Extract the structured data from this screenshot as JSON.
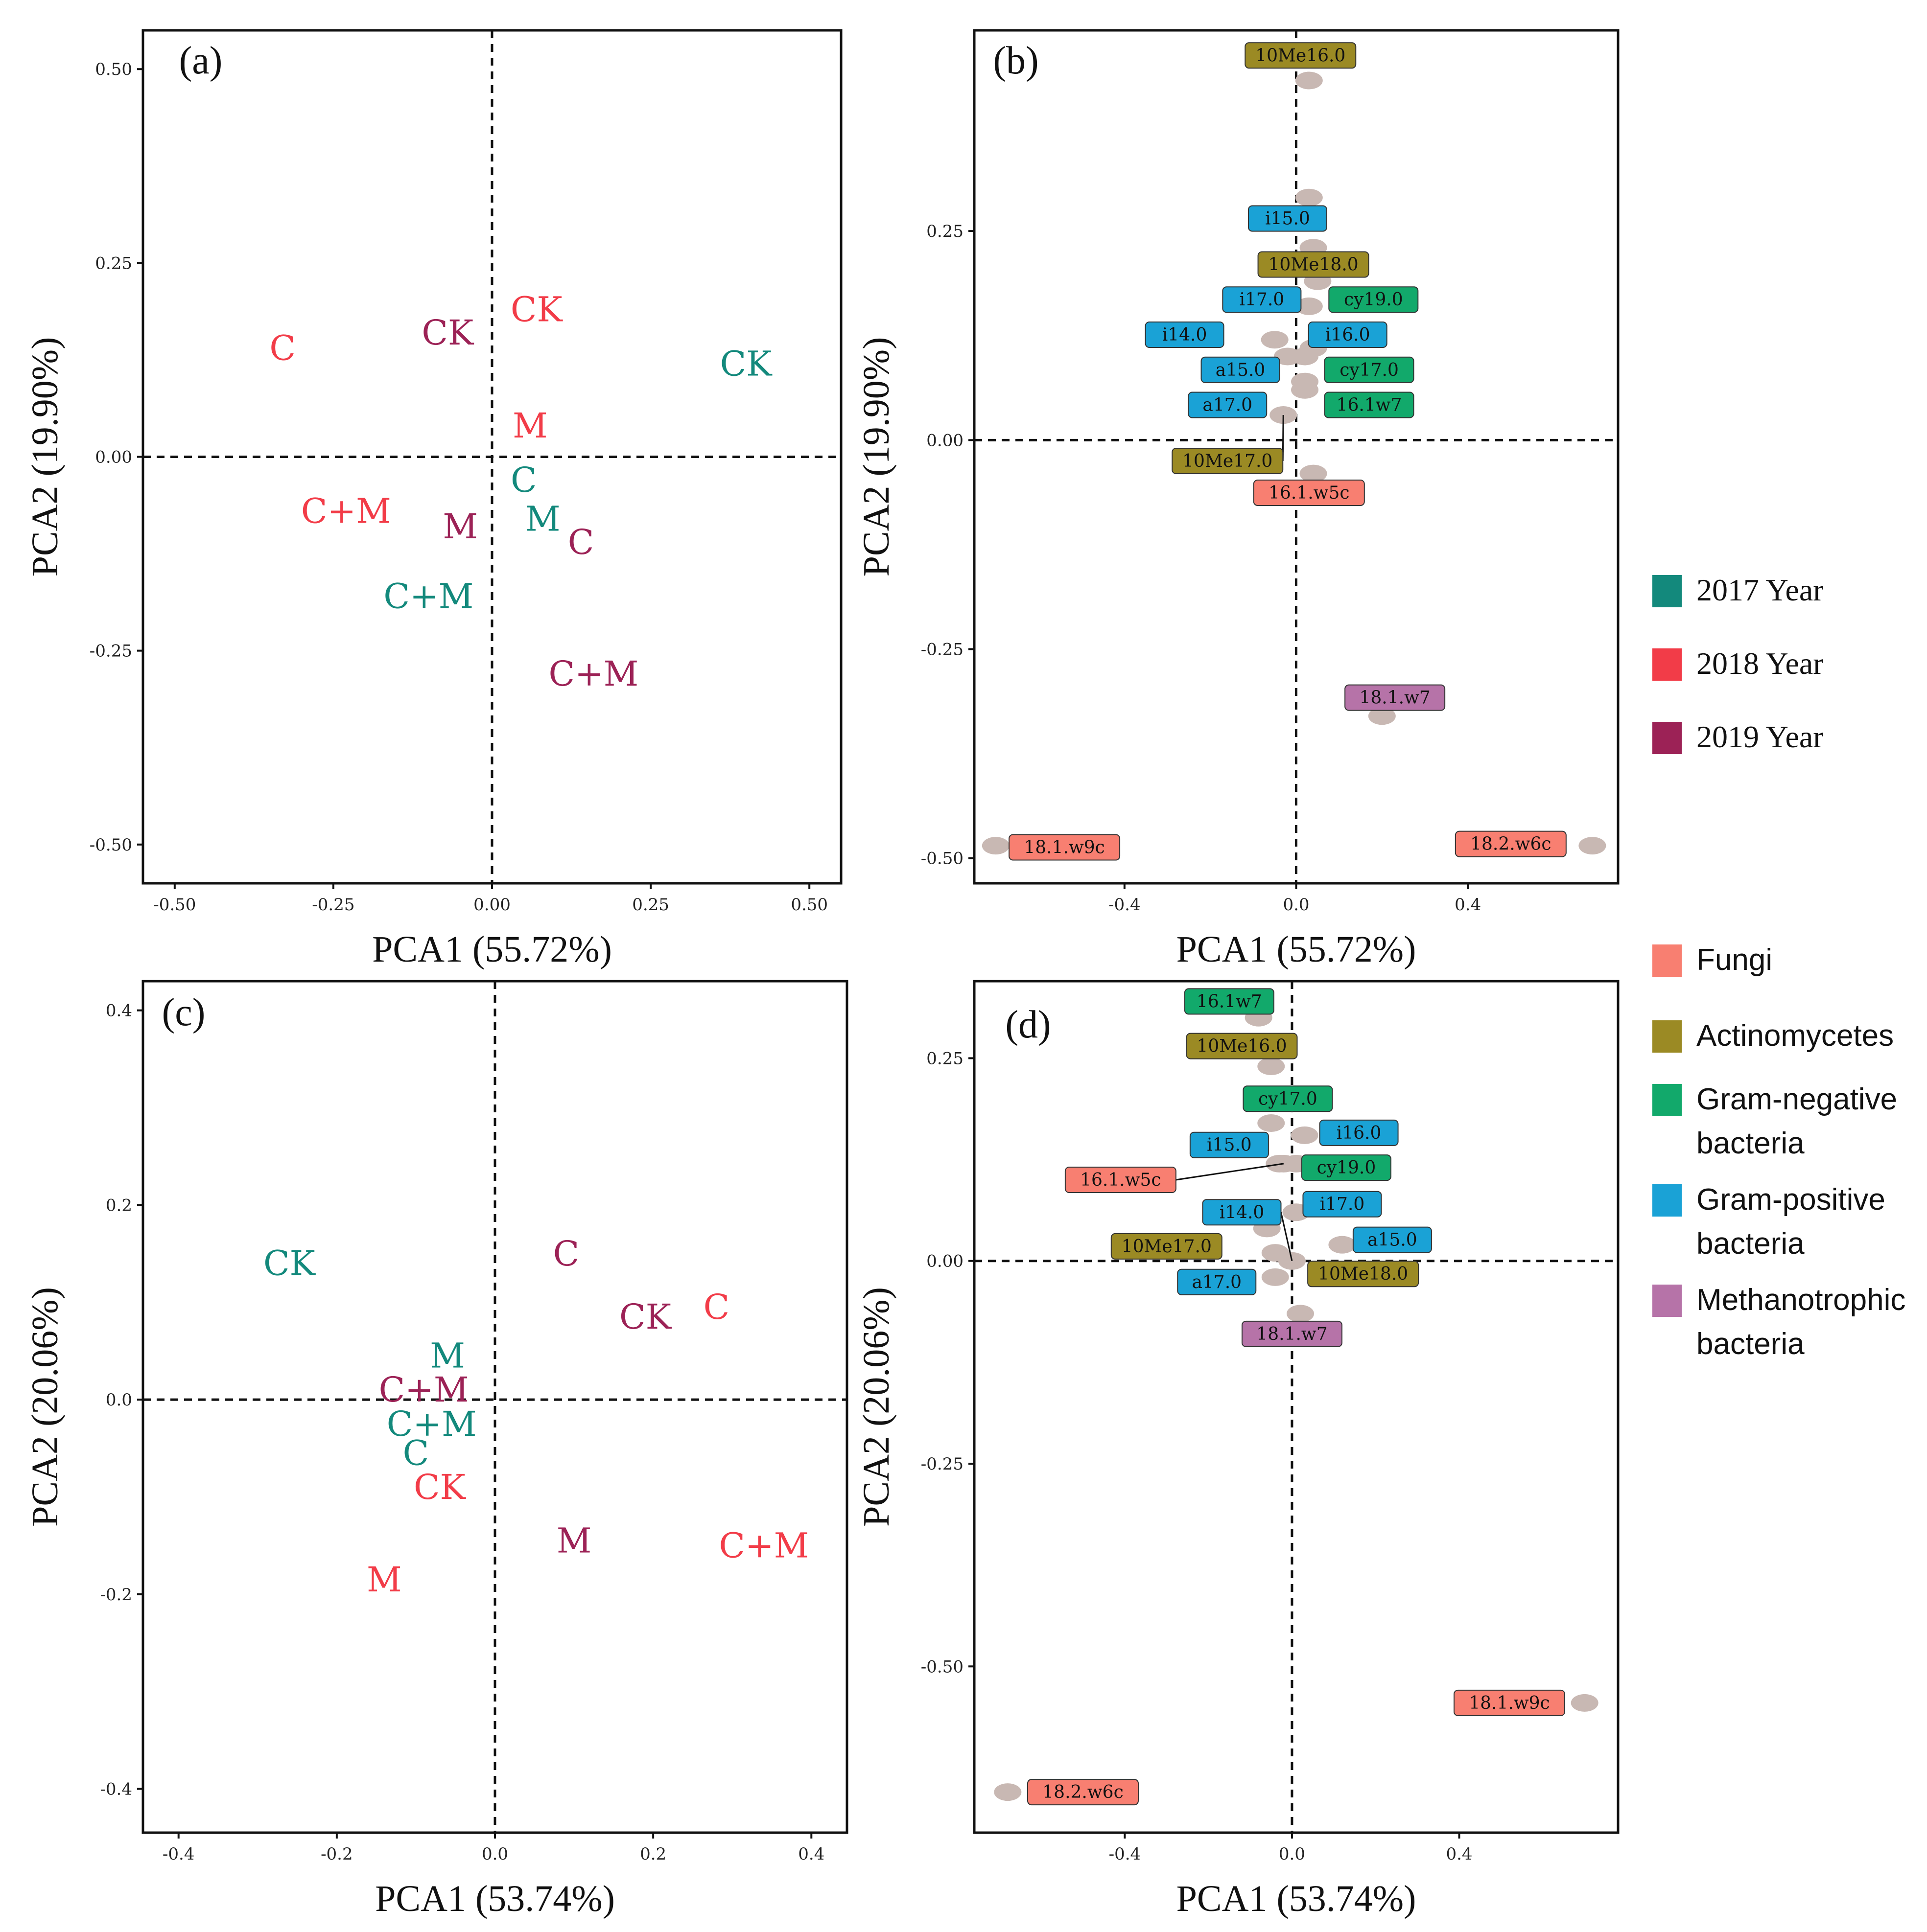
{
  "colors": {
    "y2017": "#13897c",
    "y2018": "#f23c48",
    "y2019": "#9c2256",
    "Fungi": "#f87f71",
    "Actinomycetes": "#9b8a24",
    "Gram-negative bacteria": "#12a96b",
    "Gram-positive bacteria": "#1aa2d6",
    "Methanotrophic bacteria": "#b673a8",
    "point": "#c8b8b3"
  },
  "legend_years": {
    "items": [
      {
        "label": "2017 Year",
        "key": "y2017"
      },
      {
        "label": "2018 Year",
        "key": "y2018"
      },
      {
        "label": "2019 Year",
        "key": "y2019"
      }
    ]
  },
  "legend_groups": {
    "items": [
      {
        "lines": [
          "Fungi"
        ],
        "key": "Fungi"
      },
      {
        "lines": [
          "Actinomycetes"
        ],
        "key": "Actinomycetes"
      },
      {
        "lines": [
          "Gram-negative",
          " bacteria"
        ],
        "key": "Gram-negative bacteria"
      },
      {
        "lines": [
          "Gram-positive",
          " bacteria"
        ],
        "key": "Gram-positive bacteria"
      },
      {
        "lines": [
          "Methanotrophic",
          "bacteria"
        ],
        "key": "Methanotrophic bacteria"
      }
    ]
  },
  "chart_data": [
    {
      "panel": "(a)",
      "type": "scatter",
      "xlabel": "PCA1 (55.72%)",
      "ylabel": "PCA2 (19.90%)",
      "xlim": [
        -0.55,
        0.55
      ],
      "ylim": [
        -0.55,
        0.55
      ],
      "xticks": [
        "-0.50",
        "-0.25",
        "0.00",
        "0.25",
        "0.50"
      ],
      "yticks": [
        "-0.50",
        "-0.25",
        "0.00",
        "0.25",
        "0.50"
      ],
      "xtick_values": [
        -0.5,
        -0.25,
        0,
        0.25,
        0.5
      ],
      "ytick_values": [
        -0.5,
        -0.25,
        0,
        0.25,
        0.5
      ],
      "points": [
        {
          "label": "CK",
          "group": "y2017",
          "x": 0.4,
          "y": 0.12
        },
        {
          "label": "C",
          "group": "y2017",
          "x": 0.05,
          "y": -0.03
        },
        {
          "label": "M",
          "group": "y2017",
          "x": 0.08,
          "y": -0.08
        },
        {
          "label": "C+M",
          "group": "y2017",
          "x": -0.1,
          "y": -0.18
        },
        {
          "label": "CK",
          "group": "y2018",
          "x": 0.07,
          "y": 0.19
        },
        {
          "label": "C",
          "group": "y2018",
          "x": -0.33,
          "y": 0.14
        },
        {
          "label": "M",
          "group": "y2018",
          "x": 0.06,
          "y": 0.04
        },
        {
          "label": "C+M",
          "group": "y2018",
          "x": -0.23,
          "y": -0.07
        },
        {
          "label": "CK",
          "group": "y2019",
          "x": -0.07,
          "y": 0.16
        },
        {
          "label": "M",
          "group": "y2019",
          "x": -0.05,
          "y": -0.09
        },
        {
          "label": "C",
          "group": "y2019",
          "x": 0.14,
          "y": -0.11
        },
        {
          "label": "C+M",
          "group": "y2019",
          "x": 0.16,
          "y": -0.28
        }
      ]
    },
    {
      "panel": "(b)",
      "type": "scatter",
      "xlabel": "PCA1 (55.72%)",
      "ylabel": "PCA2 (19.90%)",
      "xlim": [
        -0.75,
        0.75
      ],
      "ylim": [
        -0.53,
        0.49
      ],
      "xticks": [
        "-0.4",
        "0.0",
        "0.4"
      ],
      "yticks": [
        "-0.50",
        "-0.25",
        "0.00",
        "0.25"
      ],
      "xtick_values": [
        -0.4,
        0,
        0.4
      ],
      "ytick_values": [
        -0.5,
        -0.25,
        0,
        0.25
      ],
      "points": [
        {
          "label": "10Me16.0",
          "group": "Actinomycetes",
          "x": 0.03,
          "y": 0.43,
          "lx": 0.01,
          "ly": 0.46
        },
        {
          "label": "i15.0",
          "group": "Gram-positive bacteria",
          "x": 0.03,
          "y": 0.29,
          "lx": -0.02,
          "ly": 0.265
        },
        {
          "label": "10Me18.0",
          "group": "Actinomycetes",
          "x": 0.04,
          "y": 0.23,
          "lx": 0.04,
          "ly": 0.21
        },
        {
          "label": "i17.0",
          "group": "Gram-positive bacteria",
          "x": 0.03,
          "y": 0.16,
          "lx": -0.08,
          "ly": 0.168
        },
        {
          "label": "cy19.0",
          "group": "Gram-negative bacteria",
          "x": 0.05,
          "y": 0.19,
          "lx": 0.18,
          "ly": 0.168
        },
        {
          "label": "i14.0",
          "group": "Gram-positive bacteria",
          "x": -0.05,
          "y": 0.12,
          "lx": -0.26,
          "ly": 0.126
        },
        {
          "label": "i16.0",
          "group": "Gram-positive bacteria",
          "x": 0.02,
          "y": 0.1,
          "lx": 0.12,
          "ly": 0.126
        },
        {
          "label": "a15.0",
          "group": "Gram-positive bacteria",
          "x": -0.02,
          "y": 0.1,
          "lx": -0.13,
          "ly": 0.084
        },
        {
          "label": "cy17.0",
          "group": "Gram-negative bacteria",
          "x": 0.04,
          "y": 0.11,
          "lx": 0.17,
          "ly": 0.084
        },
        {
          "label": "a17.0",
          "group": "Gram-positive bacteria",
          "x": 0.02,
          "y": 0.07,
          "lx": -0.16,
          "ly": 0.042
        },
        {
          "label": "16.1w7",
          "group": "Gram-negative bacteria",
          "x": 0.02,
          "y": 0.06,
          "lx": 0.17,
          "ly": 0.042
        },
        {
          "label": "10Me17.0",
          "group": "Actinomycetes",
          "x": -0.03,
          "y": 0.03,
          "lx": -0.16,
          "ly": -0.025,
          "leader": true
        },
        {
          "label": "16.1.w5c",
          "group": "Fungi",
          "x": 0.04,
          "y": -0.04,
          "lx": 0.03,
          "ly": -0.063
        },
        {
          "label": "18.1.w7",
          "group": "Methanotrophic bacteria",
          "x": 0.2,
          "y": -0.33,
          "lx": 0.23,
          "ly": -0.308
        },
        {
          "label": "18.1.w9c",
          "group": "Fungi",
          "x": -0.7,
          "y": -0.485,
          "lx": -0.54,
          "ly": -0.487
        },
        {
          "label": "18.2.w6c",
          "group": "Fungi",
          "x": 0.69,
          "y": -0.485,
          "lx": 0.5,
          "ly": -0.483
        }
      ]
    },
    {
      "panel": "(c)",
      "type": "scatter",
      "xlabel": "PCA1 (53.74%)",
      "ylabel": "PCA2 (20.06%)",
      "xlim": [
        -0.445,
        0.445
      ],
      "ylim": [
        -0.445,
        0.43
      ],
      "xticks": [
        "-0.4",
        "-0.2",
        "0.0",
        "0.2",
        "0.4"
      ],
      "yticks": [
        "-0.4",
        "-0.2",
        "0.0",
        "0.2",
        "0.4"
      ],
      "xtick_values": [
        -0.4,
        -0.2,
        0,
        0.2,
        0.4
      ],
      "ytick_values": [
        -0.4,
        -0.2,
        0,
        0.2,
        0.4
      ],
      "points": [
        {
          "label": "CK",
          "group": "y2017",
          "x": -0.26,
          "y": 0.14
        },
        {
          "label": "M",
          "group": "y2017",
          "x": -0.06,
          "y": 0.045
        },
        {
          "label": "C+M",
          "group": "y2017",
          "x": -0.08,
          "y": -0.025
        },
        {
          "label": "C",
          "group": "y2017",
          "x": -0.1,
          "y": -0.055
        },
        {
          "label": "C",
          "group": "y2018",
          "x": 0.28,
          "y": 0.095
        },
        {
          "label": "CK",
          "group": "y2018",
          "x": -0.07,
          "y": -0.09
        },
        {
          "label": "C+M",
          "group": "y2018",
          "x": 0.34,
          "y": -0.15
        },
        {
          "label": "M",
          "group": "y2018",
          "x": -0.14,
          "y": -0.185
        },
        {
          "label": "C",
          "group": "y2019",
          "x": 0.09,
          "y": 0.15
        },
        {
          "label": "CK",
          "group": "y2019",
          "x": 0.19,
          "y": 0.085
        },
        {
          "label": "C+M",
          "group": "y2019",
          "x": -0.09,
          "y": 0.01
        },
        {
          "label": "M",
          "group": "y2019",
          "x": 0.1,
          "y": -0.145
        }
      ]
    },
    {
      "panel": "(d)",
      "type": "scatter",
      "xlabel": "PCA1 (53.74%)",
      "ylabel": "PCA2 (20.06%)",
      "xlim": [
        -0.76,
        0.78
      ],
      "ylim": [
        -0.705,
        0.345
      ],
      "xticks": [
        "-0.4",
        "0.0",
        "0.4"
      ],
      "yticks": [
        "-0.50",
        "-0.25",
        "0.00",
        "0.25"
      ],
      "xtick_values": [
        -0.4,
        0,
        0.4
      ],
      "ytick_values": [
        -0.5,
        -0.25,
        0,
        0.25
      ],
      "points": [
        {
          "label": "16.1w7",
          "group": "Gram-negative bacteria",
          "x": -0.08,
          "y": 0.3,
          "lx": -0.15,
          "ly": 0.32
        },
        {
          "label": "10Me16.0",
          "group": "Actinomycetes",
          "x": -0.05,
          "y": 0.24,
          "lx": -0.12,
          "ly": 0.265
        },
        {
          "label": "cy17.0",
          "group": "Gram-negative bacteria",
          "x": -0.05,
          "y": 0.17,
          "lx": -0.01,
          "ly": 0.2
        },
        {
          "label": "i16.0",
          "group": "Gram-positive bacteria",
          "x": 0.03,
          "y": 0.155,
          "lx": 0.16,
          "ly": 0.158
        },
        {
          "label": "i15.0",
          "group": "Gram-positive bacteria",
          "x": -0.03,
          "y": 0.12,
          "lx": -0.15,
          "ly": 0.143
        },
        {
          "label": "cy19.0",
          "group": "Gram-negative bacteria",
          "x": 0.01,
          "y": 0.12,
          "lx": 0.13,
          "ly": 0.115
        },
        {
          "label": "16.1.w5c",
          "group": "Fungi",
          "x": -0.02,
          "y": 0.12,
          "lx": -0.41,
          "ly": 0.1,
          "leader": true
        },
        {
          "label": "i17.0",
          "group": "Gram-positive bacteria",
          "x": 0.01,
          "y": 0.06,
          "lx": 0.12,
          "ly": 0.07
        },
        {
          "label": "i14.0",
          "group": "Gram-positive bacteria",
          "x": -0.06,
          "y": 0.04,
          "lx": -0.12,
          "ly": 0.06,
          "leader": true,
          "tx": 0.0,
          "ty": 0.0
        },
        {
          "label": "a15.0",
          "group": "Gram-positive bacteria",
          "x": 0.12,
          "y": 0.02,
          "lx": 0.24,
          "ly": 0.026
        },
        {
          "label": "10Me17.0",
          "group": "Actinomycetes",
          "x": -0.04,
          "y": 0.01,
          "lx": -0.3,
          "ly": 0.018
        },
        {
          "label": "10Me18.0",
          "group": "Actinomycetes",
          "x": 0.0,
          "y": 0.0,
          "lx": 0.17,
          "ly": -0.016
        },
        {
          "label": "a17.0",
          "group": "Gram-positive bacteria",
          "x": -0.04,
          "y": -0.02,
          "lx": -0.18,
          "ly": -0.026
        },
        {
          "label": "18.1.w7",
          "group": "Methanotrophic bacteria",
          "x": 0.02,
          "y": -0.065,
          "lx": 0.0,
          "ly": -0.09
        },
        {
          "label": "18.1.w9c",
          "group": "Fungi",
          "x": 0.7,
          "y": -0.545,
          "lx": 0.52,
          "ly": -0.545
        },
        {
          "label": "18.2.w6c",
          "group": "Fungi",
          "x": -0.68,
          "y": -0.655,
          "lx": -0.5,
          "ly": -0.655
        }
      ]
    }
  ]
}
